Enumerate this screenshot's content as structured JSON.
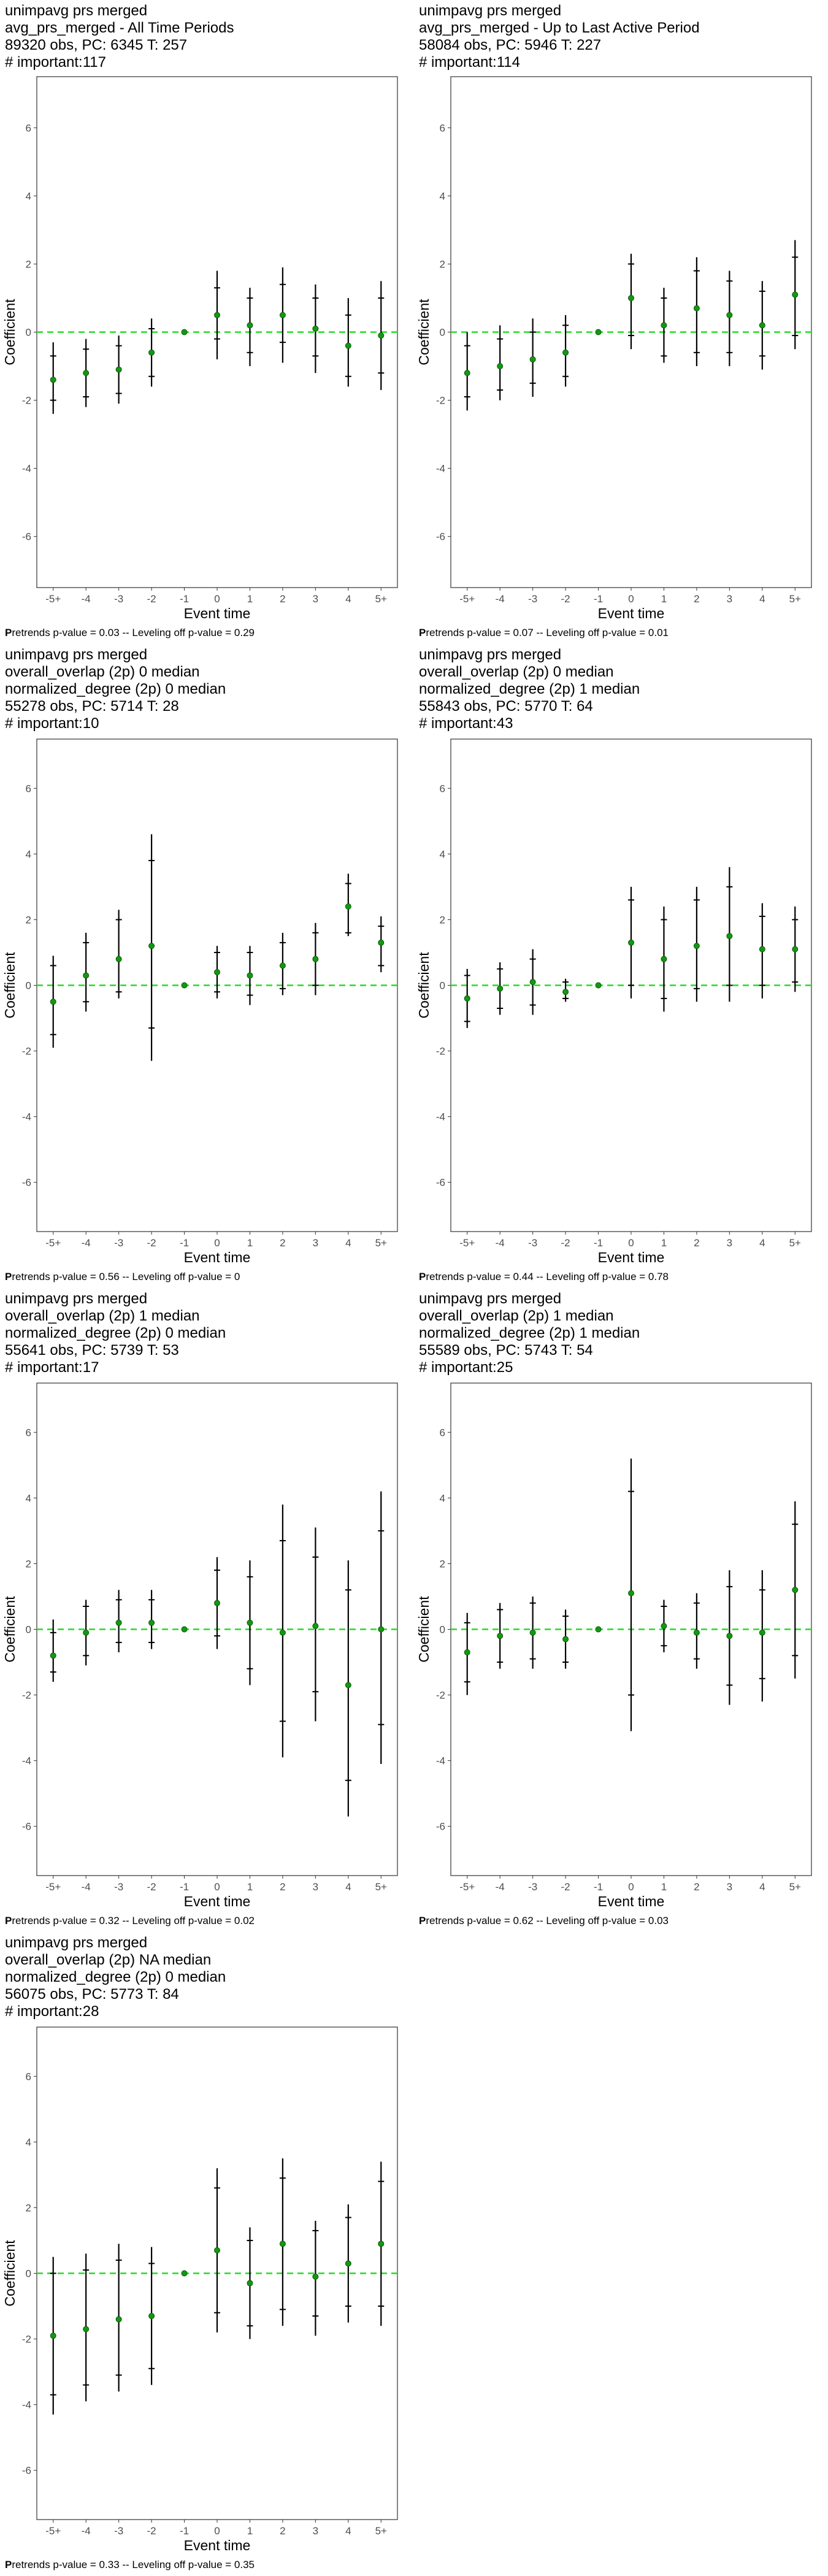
{
  "chart_data": [
    {
      "type": "scatter",
      "title_lines": [
        " unimpavg prs merged",
        "avg_prs_merged - All Time Periods",
        "89320 obs, PC: 6345 T: 257",
        "# important:117"
      ],
      "xlabel": "Event time",
      "ylabel": "Coefficient",
      "categories": [
        "-5+",
        "-4",
        "-3",
        "-2",
        "-1",
        "0",
        "1",
        "2",
        "3",
        "4",
        "5+"
      ],
      "ylim": [
        -7.5,
        7.5
      ],
      "yticks": [
        "-6",
        "-4",
        "-2",
        "0",
        "2",
        "4",
        "6"
      ],
      "estimates": [
        -1.4,
        -1.2,
        -1.1,
        -0.6,
        0,
        0.5,
        0.2,
        0.5,
        0.1,
        -0.4,
        -0.1
      ],
      "ci90": [
        [
          -2.0,
          -0.7
        ],
        [
          -1.9,
          -0.5
        ],
        [
          -1.8,
          -0.4
        ],
        [
          -1.3,
          0.1
        ],
        [
          0,
          0
        ],
        [
          -0.2,
          1.3
        ],
        [
          -0.6,
          1.0
        ],
        [
          -0.3,
          1.4
        ],
        [
          -0.7,
          1.0
        ],
        [
          -1.3,
          0.5
        ],
        [
          -1.2,
          1.0
        ]
      ],
      "ci95": [
        [
          -2.4,
          -0.3
        ],
        [
          -2.2,
          -0.2
        ],
        [
          -2.1,
          -0.1
        ],
        [
          -1.6,
          0.4
        ],
        [
          0,
          0
        ],
        [
          -0.8,
          1.8
        ],
        [
          -1.0,
          1.3
        ],
        [
          -0.9,
          1.9
        ],
        [
          -1.2,
          1.4
        ],
        [
          -1.6,
          1.0
        ],
        [
          -1.7,
          1.5
        ]
      ],
      "reference_line": 0,
      "footer_bold": "P",
      "footer": "retrends p-value = 0.03 -- Leveling off p-value = 0.29"
    },
    {
      "type": "scatter",
      "title_lines": [
        " unimpavg prs merged",
        "avg_prs_merged - Up to Last Active Period",
        "58084 obs, PC: 5946 T: 227",
        "# important:114"
      ],
      "xlabel": "Event time",
      "ylabel": "Coefficient",
      "categories": [
        "-5+",
        "-4",
        "-3",
        "-2",
        "-1",
        "0",
        "1",
        "2",
        "3",
        "4",
        "5+"
      ],
      "ylim": [
        -7.5,
        7.5
      ],
      "yticks": [
        "-6",
        "-4",
        "-2",
        "0",
        "2",
        "4",
        "6"
      ],
      "estimates": [
        -1.2,
        -1.0,
        -0.8,
        -0.6,
        0,
        1.0,
        0.2,
        0.7,
        0.5,
        0.2,
        1.1
      ],
      "ci90": [
        [
          -1.9,
          -0.4
        ],
        [
          -1.7,
          -0.2
        ],
        [
          -1.5,
          0.0
        ],
        [
          -1.3,
          0.2
        ],
        [
          0,
          0
        ],
        [
          -0.1,
          2.0
        ],
        [
          -0.7,
          1.0
        ],
        [
          -0.6,
          1.8
        ],
        [
          -0.6,
          1.5
        ],
        [
          -0.7,
          1.2
        ],
        [
          -0.1,
          2.2
        ]
      ],
      "ci95": [
        [
          -2.3,
          0.0
        ],
        [
          -2.0,
          0.2
        ],
        [
          -1.9,
          0.4
        ],
        [
          -1.6,
          0.5
        ],
        [
          0,
          0
        ],
        [
          -0.5,
          2.3
        ],
        [
          -0.9,
          1.3
        ],
        [
          -1.0,
          2.2
        ],
        [
          -1.0,
          1.8
        ],
        [
          -1.1,
          1.5
        ],
        [
          -0.5,
          2.7
        ]
      ],
      "reference_line": 0,
      "footer_bold": "P",
      "footer": "retrends p-value = 0.07 -- Leveling off p-value = 0.01"
    },
    {
      "type": "scatter",
      "title_lines": [
        " unimpavg prs merged",
        "overall_overlap (2p) 0 median",
        "normalized_degree (2p) 0 median",
        "55278 obs, PC: 5714 T: 28",
        "# important:10"
      ],
      "xlabel": "Event time",
      "ylabel": "Coefficient",
      "categories": [
        "-5+",
        "-4",
        "-3",
        "-2",
        "-1",
        "0",
        "1",
        "2",
        "3",
        "4",
        "5+"
      ],
      "ylim": [
        -7.5,
        7.5
      ],
      "yticks": [
        "-6",
        "-4",
        "-2",
        "0",
        "2",
        "4",
        "6"
      ],
      "estimates": [
        -0.5,
        0.3,
        0.8,
        1.2,
        0,
        0.4,
        0.3,
        0.6,
        0.8,
        2.4,
        1.3
      ],
      "ci90": [
        [
          -1.5,
          0.6
        ],
        [
          -0.5,
          1.3
        ],
        [
          -0.2,
          2.0
        ],
        [
          -1.3,
          3.8
        ],
        [
          0,
          0
        ],
        [
          -0.2,
          1.0
        ],
        [
          -0.3,
          1.0
        ],
        [
          -0.1,
          1.3
        ],
        [
          0.0,
          1.6
        ],
        [
          1.6,
          3.1
        ],
        [
          0.6,
          1.8
        ]
      ],
      "ci95": [
        [
          -1.9,
          0.9
        ],
        [
          -0.8,
          1.6
        ],
        [
          -0.4,
          2.3
        ],
        [
          -2.3,
          4.6
        ],
        [
          0,
          0
        ],
        [
          -0.4,
          1.2
        ],
        [
          -0.6,
          1.2
        ],
        [
          -0.3,
          1.6
        ],
        [
          -0.3,
          1.9
        ],
        [
          1.5,
          3.4
        ],
        [
          0.4,
          2.1
        ]
      ],
      "reference_line": 0,
      "footer_bold": "P",
      "footer": "retrends p-value = 0.56 -- Leveling off p-value = 0"
    },
    {
      "type": "scatter",
      "title_lines": [
        " unimpavg prs merged",
        "overall_overlap (2p) 0 median",
        "normalized_degree (2p) 1 median",
        "55843 obs, PC: 5770 T: 64",
        "# important:43"
      ],
      "xlabel": "Event time",
      "ylabel": "Coefficient",
      "categories": [
        "-5+",
        "-4",
        "-3",
        "-2",
        "-1",
        "0",
        "1",
        "2",
        "3",
        "4",
        "5+"
      ],
      "ylim": [
        -7.5,
        7.5
      ],
      "yticks": [
        "-6",
        "-4",
        "-2",
        "0",
        "2",
        "4",
        "6"
      ],
      "estimates": [
        -0.4,
        -0.1,
        0.1,
        -0.2,
        0,
        1.3,
        0.8,
        1.2,
        1.5,
        1.1,
        1.1
      ],
      "ci90": [
        [
          -1.1,
          0.3
        ],
        [
          -0.7,
          0.5
        ],
        [
          -0.6,
          0.8
        ],
        [
          -0.4,
          0.1
        ],
        [
          0,
          0
        ],
        [
          0.0,
          2.6
        ],
        [
          -0.4,
          2.0
        ],
        [
          -0.1,
          2.6
        ],
        [
          0.0,
          3.0
        ],
        [
          0.0,
          2.1
        ],
        [
          0.1,
          2.0
        ]
      ],
      "ci95": [
        [
          -1.3,
          0.5
        ],
        [
          -0.9,
          0.7
        ],
        [
          -0.9,
          1.1
        ],
        [
          -0.5,
          0.2
        ],
        [
          0,
          0
        ],
        [
          -0.4,
          3.0
        ],
        [
          -0.8,
          2.4
        ],
        [
          -0.5,
          3.0
        ],
        [
          -0.5,
          3.6
        ],
        [
          -0.4,
          2.5
        ],
        [
          -0.2,
          2.4
        ]
      ],
      "reference_line": 0,
      "footer_bold": "P",
      "footer": "retrends p-value = 0.44 -- Leveling off p-value = 0.78"
    },
    {
      "type": "scatter",
      "title_lines": [
        " unimpavg prs merged",
        "overall_overlap (2p) 1 median",
        "normalized_degree (2p) 0 median",
        "55641 obs, PC: 5739 T: 53",
        "# important:17"
      ],
      "xlabel": "Event time",
      "ylabel": "Coefficient",
      "categories": [
        "-5+",
        "-4",
        "-3",
        "-2",
        "-1",
        "0",
        "1",
        "2",
        "3",
        "4",
        "5+"
      ],
      "ylim": [
        -7.5,
        7.5
      ],
      "yticks": [
        "-6",
        "-4",
        "-2",
        "0",
        "2",
        "4",
        "6"
      ],
      "estimates": [
        -0.8,
        -0.1,
        0.2,
        0.2,
        0,
        0.8,
        0.2,
        -0.1,
        0.1,
        -1.7,
        0.0
      ],
      "ci90": [
        [
          -1.3,
          -0.1
        ],
        [
          -0.8,
          0.7
        ],
        [
          -0.4,
          0.9
        ],
        [
          -0.4,
          0.9
        ],
        [
          0,
          0
        ],
        [
          -0.2,
          1.8
        ],
        [
          -1.2,
          1.6
        ],
        [
          -2.8,
          2.7
        ],
        [
          -1.9,
          2.2
        ],
        [
          -4.6,
          1.2
        ],
        [
          -2.9,
          3.0
        ]
      ],
      "ci95": [
        [
          -1.6,
          0.3
        ],
        [
          -1.1,
          0.9
        ],
        [
          -0.7,
          1.2
        ],
        [
          -0.6,
          1.2
        ],
        [
          0,
          0
        ],
        [
          -0.6,
          2.2
        ],
        [
          -1.7,
          2.1
        ],
        [
          -3.9,
          3.8
        ],
        [
          -2.8,
          3.1
        ],
        [
          -5.7,
          2.1
        ],
        [
          -4.1,
          4.2
        ]
      ],
      "reference_line": 0,
      "footer_bold": "P",
      "footer": "retrends p-value = 0.32 -- Leveling off p-value = 0.02"
    },
    {
      "type": "scatter",
      "title_lines": [
        " unimpavg prs merged",
        "overall_overlap (2p) 1 median",
        "normalized_degree (2p) 1 median",
        "55589 obs, PC: 5743 T: 54",
        "# important:25"
      ],
      "xlabel": "Event time",
      "ylabel": "Coefficient",
      "categories": [
        "-5+",
        "-4",
        "-3",
        "-2",
        "-1",
        "0",
        "1",
        "2",
        "3",
        "4",
        "5+"
      ],
      "ylim": [
        -7.5,
        7.5
      ],
      "yticks": [
        "-6",
        "-4",
        "-2",
        "0",
        "2",
        "4",
        "6"
      ],
      "estimates": [
        -0.7,
        -0.2,
        -0.1,
        -0.3,
        0,
        1.1,
        0.1,
        -0.1,
        -0.2,
        -0.1,
        1.2
      ],
      "ci90": [
        [
          -1.6,
          0.2
        ],
        [
          -1.0,
          0.6
        ],
        [
          -0.9,
          0.8
        ],
        [
          -1.0,
          0.4
        ],
        [
          0,
          0
        ],
        [
          -2.0,
          4.2
        ],
        [
          -0.5,
          0.7
        ],
        [
          -0.9,
          0.8
        ],
        [
          -1.7,
          1.3
        ],
        [
          -1.5,
          1.2
        ],
        [
          -0.8,
          3.2
        ]
      ],
      "ci95": [
        [
          -2.0,
          0.5
        ],
        [
          -1.2,
          0.8
        ],
        [
          -1.2,
          1.0
        ],
        [
          -1.2,
          0.6
        ],
        [
          0,
          0
        ],
        [
          -3.1,
          5.2
        ],
        [
          -0.7,
          0.9
        ],
        [
          -1.2,
          1.1
        ],
        [
          -2.3,
          1.8
        ],
        [
          -2.2,
          1.8
        ],
        [
          -1.5,
          3.9
        ]
      ],
      "reference_line": 0,
      "footer_bold": "P",
      "footer": "retrends p-value = 0.62 -- Leveling off p-value = 0.03"
    },
    {
      "type": "scatter",
      "title_lines": [
        " unimpavg prs merged",
        "overall_overlap (2p) NA median",
        "normalized_degree (2p) 0 median",
        "56075 obs, PC: 5773 T: 84",
        "# important:28"
      ],
      "xlabel": "Event time",
      "ylabel": "Coefficient",
      "categories": [
        "-5+",
        "-4",
        "-3",
        "-2",
        "-1",
        "0",
        "1",
        "2",
        "3",
        "4",
        "5+"
      ],
      "ylim": [
        -7.5,
        7.5
      ],
      "yticks": [
        "-6",
        "-4",
        "-2",
        "0",
        "2",
        "4",
        "6"
      ],
      "estimates": [
        -1.9,
        -1.7,
        -1.4,
        -1.3,
        0,
        0.7,
        -0.3,
        0.9,
        -0.1,
        0.3,
        0.9
      ],
      "ci90": [
        [
          -3.7,
          0.0
        ],
        [
          -3.4,
          0.1
        ],
        [
          -3.1,
          0.4
        ],
        [
          -2.9,
          0.3
        ],
        [
          0,
          0
        ],
        [
          -1.2,
          2.6
        ],
        [
          -1.6,
          1.0
        ],
        [
          -1.1,
          2.9
        ],
        [
          -1.3,
          1.3
        ],
        [
          -1.0,
          1.7
        ],
        [
          -1.0,
          2.8
        ]
      ],
      "ci95": [
        [
          -4.3,
          0.5
        ],
        [
          -3.9,
          0.6
        ],
        [
          -3.6,
          0.9
        ],
        [
          -3.4,
          0.8
        ],
        [
          0,
          0
        ],
        [
          -1.8,
          3.2
        ],
        [
          -2.0,
          1.4
        ],
        [
          -1.6,
          3.5
        ],
        [
          -1.9,
          1.6
        ],
        [
          -1.5,
          2.1
        ],
        [
          -1.6,
          3.4
        ]
      ],
      "reference_line": 0,
      "footer_bold": "P",
      "footer": "retrends p-value = 0.33 -- Leveling off p-value = 0.35"
    }
  ]
}
